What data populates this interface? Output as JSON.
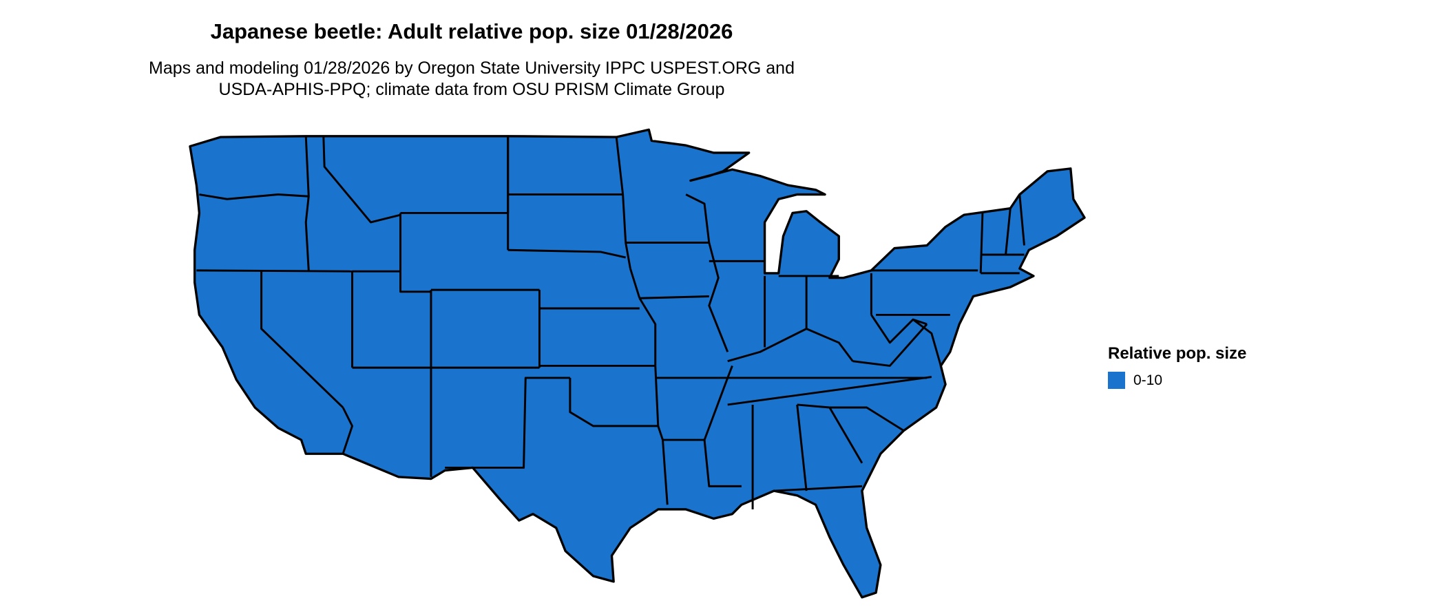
{
  "title": "Japanese beetle: Adult relative pop. size 01/28/2026",
  "subtitle_line1": "Maps and modeling 01/28/2026 by Oregon State University IPPC USPEST.ORG and",
  "subtitle_line2": "USDA-APHIS-PPQ; climate data from OSU PRISM Climate Group",
  "map": {
    "region": "Contiguous United States",
    "fill_color": "#1a73cc",
    "border_color": "#000000"
  },
  "legend": {
    "title": "Relative pop. size",
    "items": [
      {
        "label": "0-10",
        "color": "#1a73cc"
      }
    ]
  }
}
